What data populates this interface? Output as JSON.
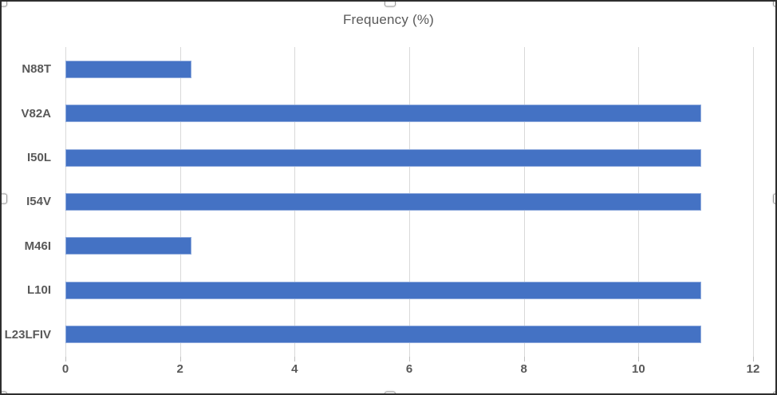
{
  "object": {
    "kind": "selected-chart-object",
    "selection_handle_color": "#ffffff",
    "selection_border_color": "#2e2e2e"
  },
  "chart_data": {
    "type": "bar",
    "orientation": "horizontal",
    "title": "Frequency (%)",
    "categories": [
      "N88T",
      "V82A",
      "I50L",
      "I54V",
      "M46I",
      "L10I",
      "L23LFIV"
    ],
    "values": [
      2.2,
      11.1,
      11.1,
      11.1,
      2.2,
      11.1,
      11.1
    ],
    "xlabel": "",
    "ylabel": "",
    "xlim": [
      0,
      12
    ],
    "xticks": [
      0,
      2,
      4,
      6,
      8,
      10,
      12
    ],
    "grid": true,
    "legend": false,
    "bar_color": "#4472C4",
    "bar_edge_color": "#8FAADC",
    "gridline_color": "#D9D9D9",
    "text_color": "#595959"
  }
}
